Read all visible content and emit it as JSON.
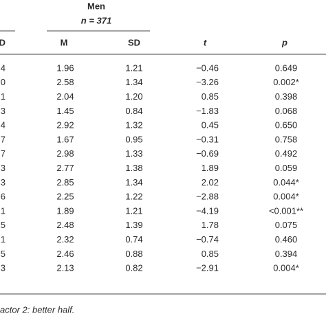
{
  "header": {
    "group": "Men",
    "n": "n = 371",
    "left_cut": "D"
  },
  "columns": [
    "M",
    "SD",
    "t",
    "p"
  ],
  "table": {
    "left_cut": [
      "4",
      "0",
      "1",
      "3",
      "4",
      "7",
      "7",
      "3",
      "3",
      "6",
      "1",
      "5",
      "1",
      "5",
      "3"
    ],
    "rows": [
      [
        "1.96",
        "1.21",
        "−0.46",
        "0.649"
      ],
      [
        "2.58",
        "1.34",
        "−3.26",
        "0.002*"
      ],
      [
        "2.04",
        "1.20",
        "0.85",
        "0.398"
      ],
      [
        "1.45",
        "0.84",
        "−1.83",
        "0.068"
      ],
      [
        "2.92",
        "1.32",
        "0.45",
        "0.650"
      ],
      [
        "1.67",
        "0.95",
        "−0.31",
        "0.758"
      ],
      [
        "2.98",
        "1.33",
        "−0.69",
        "0.492"
      ],
      [
        "2.77",
        "1.38",
        "1.89",
        "0.059"
      ],
      [
        "2.85",
        "1.34",
        "2.02",
        "0.044*"
      ],
      [
        "2.25",
        "1.22",
        "−2.88",
        "0.004*"
      ],
      [
        "1.89",
        "1.21",
        "−4.19",
        "<0.001**"
      ],
      [
        "2.48",
        "1.39",
        "1.78",
        "0.075"
      ],
      [
        "2.32",
        "0.74",
        "−0.74",
        "0.460"
      ],
      [
        "2.46",
        "0.88",
        "0.85",
        "0.394"
      ],
      [
        "2.13",
        "0.82",
        "−2.91",
        "0.004*"
      ]
    ]
  },
  "footer": "actor 2: better half."
}
